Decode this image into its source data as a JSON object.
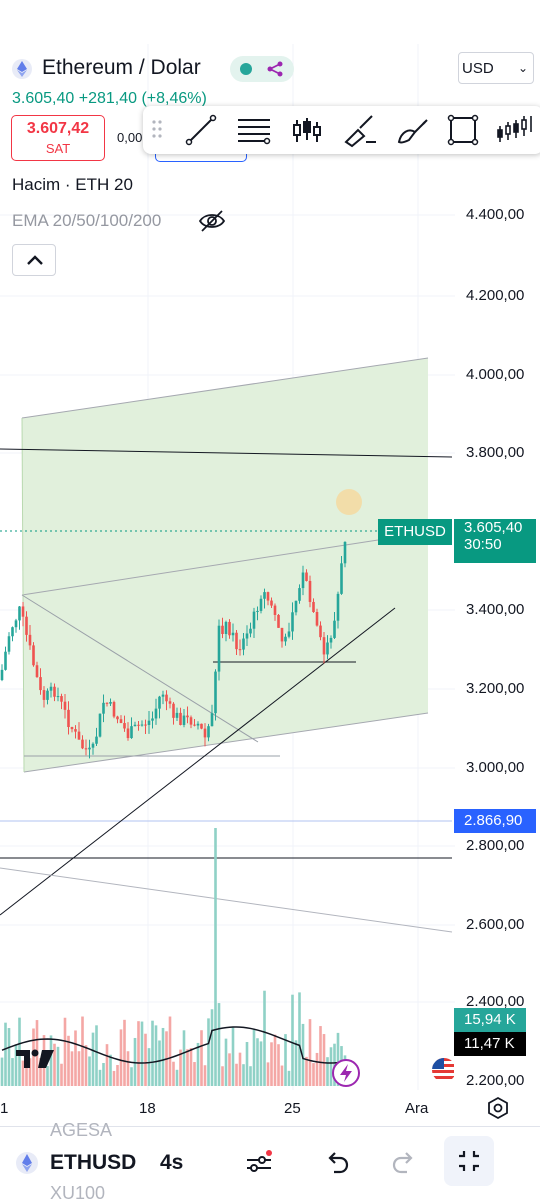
{
  "header": {
    "title": "Ethereum / Dolar",
    "price_change": "3.605,40 +281,40 (+8,46%)",
    "currency": "USD",
    "sell_price": "3.607,42",
    "sell_label": "SAT",
    "spread": "0,00",
    "volume_indicator": "Hacim · ETH 20",
    "ema_indicator": "EMA 20/50/100/200"
  },
  "toolbar": {
    "tools": [
      "drag-handle",
      "trend-line",
      "fib-retracement",
      "long-position",
      "brush",
      "highlighter",
      "rectangle",
      "chart-patterns"
    ]
  },
  "price_axis": {
    "labels": [
      "4.400,00",
      "4.200,00",
      "4.000,00",
      "3.800,00",
      "3.400,00",
      "3.200,00",
      "3.000,00",
      "2.800,00",
      "2.600,00",
      "2.400,00",
      "2.200,00"
    ]
  },
  "tags": {
    "symbol": "ETHUSD",
    "last_price": "3.605,40",
    "countdown": "30:50",
    "alert_price": "2.866,90",
    "volume_value": "15,94 K",
    "volume_avg": "11,47 K"
  },
  "time_axis": {
    "labels": [
      "1",
      "18",
      "25",
      "Ara"
    ]
  },
  "bottom_bar": {
    "ghost_above": "AGESA",
    "symbol": "ETHUSD",
    "interval": "4s",
    "ghost_below": "XU100"
  },
  "colors": {
    "up": "#26a69a",
    "down": "#ef5350",
    "channel_fill": "#e1f0dc",
    "accent_blue": "#2962ff",
    "price_green": "#089981"
  }
}
